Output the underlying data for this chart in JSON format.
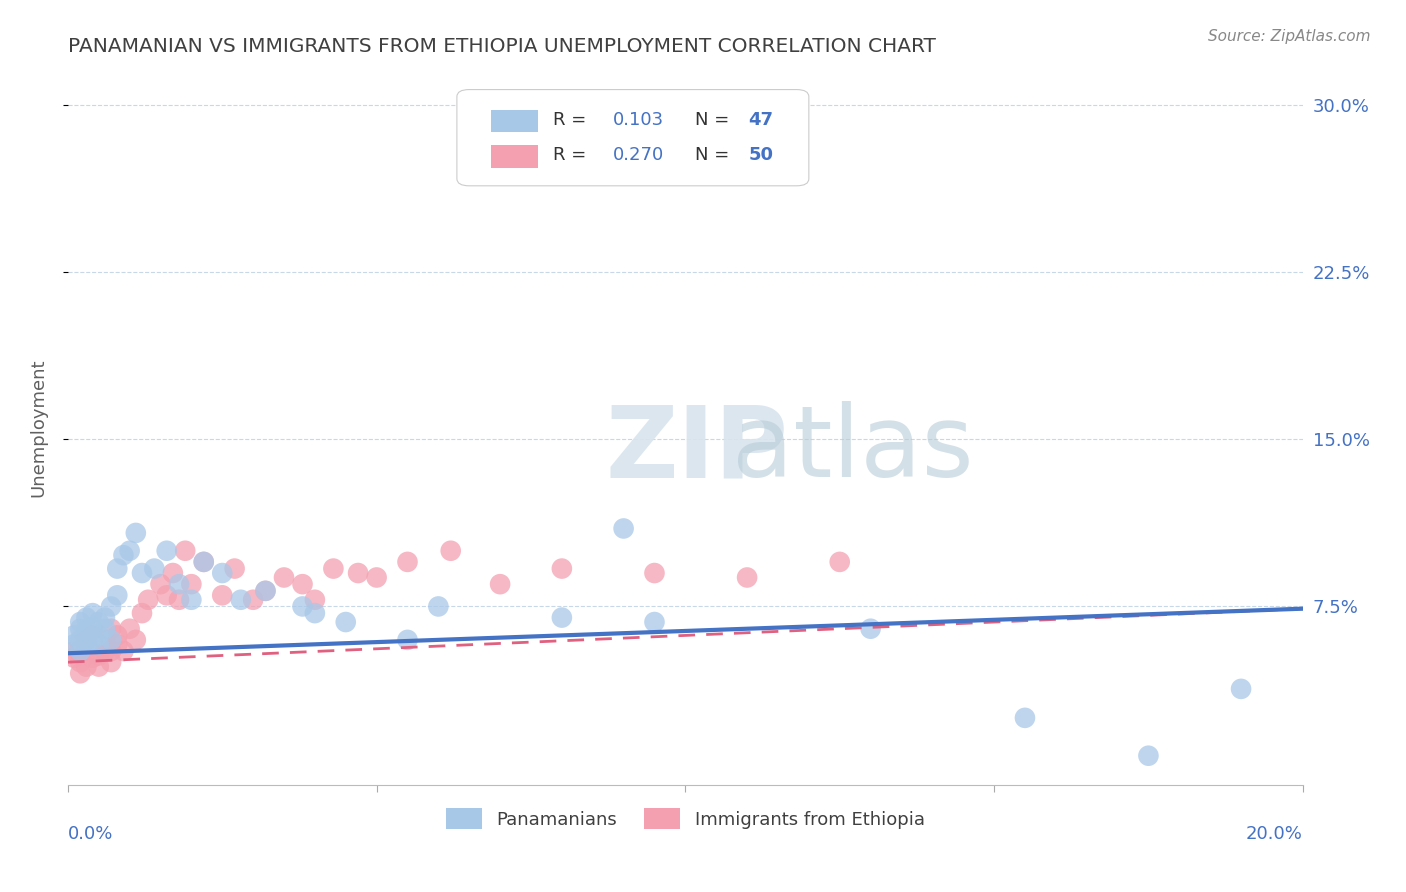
{
  "title": "PANAMANIAN VS IMMIGRANTS FROM ETHIOPIA UNEMPLOYMENT CORRELATION CHART",
  "source": "Source: ZipAtlas.com",
  "ylabel": "Unemployment",
  "y_ticks": [
    0.075,
    0.15,
    0.225,
    0.3
  ],
  "y_tick_labels": [
    "7.5%",
    "15.0%",
    "22.5%",
    "30.0%"
  ],
  "x_lim": [
    0.0,
    0.2
  ],
  "y_lim": [
    -0.005,
    0.315
  ],
  "legend_r1": "R = 0.103",
  "legend_n1": "N = 47",
  "legend_r2": "R = 0.270",
  "legend_n2": "N = 50",
  "legend_label1": "Panamanians",
  "legend_label2": "Immigrants from Ethiopia",
  "color_blue": "#a8c8e8",
  "color_pink": "#f4a0b0",
  "color_blue_line": "#4472c4",
  "color_pink_line": "#e06080",
  "color_axis_label": "#4472c4",
  "color_title": "#404040",
  "background_color": "#ffffff",
  "grid_color": "#c8d8e8",
  "pan_trend_x0": 0.0,
  "pan_trend_y0": 0.054,
  "pan_trend_x1": 0.2,
  "pan_trend_y1": 0.074,
  "eth_trend_x0": 0.0,
  "eth_trend_y0": 0.05,
  "eth_trend_x1": 0.2,
  "eth_trend_y1": 0.074,
  "pan_x": [
    0.001,
    0.001,
    0.002,
    0.002,
    0.002,
    0.002,
    0.003,
    0.003,
    0.003,
    0.003,
    0.003,
    0.004,
    0.004,
    0.004,
    0.005,
    0.005,
    0.005,
    0.006,
    0.006,
    0.007,
    0.007,
    0.008,
    0.008,
    0.009,
    0.01,
    0.011,
    0.012,
    0.014,
    0.016,
    0.018,
    0.02,
    0.022,
    0.025,
    0.028,
    0.032,
    0.038,
    0.04,
    0.045,
    0.055,
    0.06,
    0.08,
    0.09,
    0.095,
    0.13,
    0.155,
    0.175,
    0.19
  ],
  "pan_y": [
    0.062,
    0.058,
    0.065,
    0.06,
    0.055,
    0.068,
    0.063,
    0.058,
    0.06,
    0.065,
    0.07,
    0.06,
    0.065,
    0.072,
    0.058,
    0.062,
    0.068,
    0.065,
    0.07,
    0.06,
    0.075,
    0.08,
    0.092,
    0.098,
    0.1,
    0.108,
    0.09,
    0.092,
    0.1,
    0.085,
    0.078,
    0.095,
    0.09,
    0.078,
    0.082,
    0.075,
    0.072,
    0.068,
    0.06,
    0.075,
    0.07,
    0.11,
    0.068,
    0.065,
    0.025,
    0.008,
    0.038
  ],
  "eth_x": [
    0.001,
    0.001,
    0.002,
    0.002,
    0.002,
    0.003,
    0.003,
    0.003,
    0.004,
    0.004,
    0.004,
    0.005,
    0.005,
    0.005,
    0.006,
    0.006,
    0.007,
    0.007,
    0.007,
    0.008,
    0.008,
    0.009,
    0.01,
    0.011,
    0.012,
    0.013,
    0.015,
    0.016,
    0.017,
    0.018,
    0.019,
    0.02,
    0.022,
    0.025,
    0.027,
    0.03,
    0.032,
    0.035,
    0.038,
    0.04,
    0.043,
    0.047,
    0.05,
    0.055,
    0.062,
    0.07,
    0.08,
    0.095,
    0.11,
    0.125
  ],
  "eth_y": [
    0.052,
    0.055,
    0.05,
    0.058,
    0.045,
    0.048,
    0.055,
    0.06,
    0.052,
    0.058,
    0.062,
    0.048,
    0.053,
    0.058,
    0.055,
    0.06,
    0.05,
    0.055,
    0.065,
    0.058,
    0.062,
    0.055,
    0.065,
    0.06,
    0.072,
    0.078,
    0.085,
    0.08,
    0.09,
    0.078,
    0.1,
    0.085,
    0.095,
    0.08,
    0.092,
    0.078,
    0.082,
    0.088,
    0.085,
    0.078,
    0.092,
    0.09,
    0.088,
    0.095,
    0.1,
    0.085,
    0.092,
    0.09,
    0.088,
    0.095
  ]
}
